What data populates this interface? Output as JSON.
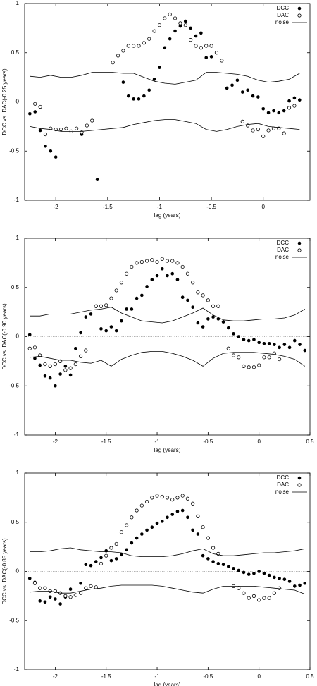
{
  "chart_data": [
    {
      "type": "scatter",
      "xlabel": "lag (years)",
      "ylabel": "DCC vs. DAC(-0.25 years)",
      "xlim": [
        -2.3,
        0.45
      ],
      "ylim": [
        -1,
        1
      ],
      "xticks": [
        -2,
        -1.5,
        -1,
        -0.5,
        0
      ],
      "yticks": [
        -1,
        -0.5,
        0,
        0.5,
        1
      ],
      "hline": 0,
      "grid": false,
      "legend": "upper right",
      "series": [
        {
          "name": "DCC",
          "style": "filled-circle",
          "color": "#000000",
          "x": [
            -2.25,
            -2.2,
            -2.15,
            -2.1,
            -2.05,
            -2.0,
            -1.95,
            -1.9,
            -1.85,
            -1.8,
            -1.75,
            -1.7,
            -1.65,
            -1.6,
            -1.55,
            -1.5,
            -1.45,
            -1.4,
            -1.35,
            -1.3,
            -1.25,
            -1.2,
            -1.15,
            -1.1,
            -1.05,
            -1.0,
            -0.95,
            -0.9,
            -0.85,
            -0.8,
            -0.75,
            -0.7,
            -0.65,
            -0.6,
            -0.55,
            -0.5,
            -0.45,
            -0.4,
            -0.35,
            -0.3,
            -0.25,
            -0.2,
            -0.15,
            -0.1,
            -0.05,
            0.0,
            0.05,
            0.1,
            0.15,
            0.2,
            0.25,
            0.3,
            0.35
          ],
          "values": [
            -0.12,
            -0.1,
            -0.29,
            -0.45,
            -0.5,
            -0.56,
            null,
            null,
            null,
            null,
            -0.33,
            null,
            null,
            -0.79,
            null,
            null,
            null,
            null,
            0.2,
            0.06,
            0.03,
            0.03,
            0.06,
            0.12,
            0.23,
            0.35,
            0.55,
            0.64,
            0.72,
            0.77,
            0.82,
            0.75,
            0.67,
            0.7,
            0.45,
            0.46,
            null,
            null,
            0.14,
            0.17,
            0.22,
            0.1,
            0.12,
            0.06,
            0.05,
            -0.07,
            -0.11,
            -0.09,
            -0.11,
            -0.09,
            0.01,
            0.04,
            0.02
          ]
        },
        {
          "name": "DAC",
          "style": "open-circle",
          "color": "#000000",
          "x": [
            -2.25,
            -2.2,
            -2.15,
            -2.1,
            -2.05,
            -2.0,
            -1.95,
            -1.9,
            -1.85,
            -1.8,
            -1.75,
            -1.7,
            -1.65,
            -1.6,
            -1.55,
            -1.5,
            -1.45,
            -1.4,
            -1.35,
            -1.3,
            -1.25,
            -1.2,
            -1.15,
            -1.1,
            -1.05,
            -1.0,
            -0.95,
            -0.9,
            -0.85,
            -0.8,
            -0.75,
            -0.7,
            -0.65,
            -0.6,
            -0.55,
            -0.5,
            -0.45,
            -0.4,
            -0.35,
            -0.3,
            -0.25,
            -0.2,
            -0.15,
            -0.1,
            -0.05,
            0.0,
            0.05,
            0.1,
            0.15,
            0.2,
            0.25,
            0.3,
            0.35
          ],
          "values": [
            null,
            -0.02,
            -0.05,
            -0.33,
            -0.27,
            -0.28,
            -0.28,
            -0.27,
            -0.3,
            -0.27,
            -0.31,
            -0.24,
            -0.19,
            null,
            null,
            null,
            0.4,
            0.47,
            0.52,
            0.57,
            0.57,
            0.57,
            0.6,
            0.64,
            0.72,
            0.78,
            0.85,
            0.89,
            0.85,
            0.8,
            0.78,
            0.63,
            0.57,
            0.55,
            0.57,
            0.57,
            0.5,
            0.42,
            null,
            null,
            null,
            -0.2,
            -0.24,
            -0.29,
            -0.28,
            -0.35,
            -0.29,
            -0.27,
            -0.27,
            -0.32,
            -0.06,
            -0.04,
            null
          ]
        },
        {
          "name": "noise",
          "style": "line",
          "color": "#000000",
          "x": [
            -2.25,
            -2.15,
            -2.05,
            -1.95,
            -1.85,
            -1.75,
            -1.65,
            -1.55,
            -1.45,
            -1.35,
            -1.25,
            -1.15,
            -1.05,
            -0.95,
            -0.85,
            -0.75,
            -0.65,
            -0.55,
            -0.45,
            -0.35,
            -0.25,
            -0.15,
            -0.05,
            0.05,
            0.15,
            0.25,
            0.35
          ],
          "values": [
            0.26,
            0.25,
            0.27,
            0.25,
            0.25,
            0.27,
            0.3,
            0.3,
            0.3,
            0.29,
            0.29,
            0.25,
            0.21,
            0.19,
            0.18,
            0.2,
            0.22,
            0.3,
            0.3,
            0.29,
            0.28,
            0.26,
            0.22,
            0.2,
            0.21,
            0.23,
            0.29
          ],
          "lower": [
            -0.25,
            -0.27,
            -0.28,
            -0.3,
            -0.3,
            -0.3,
            -0.29,
            -0.28,
            -0.27,
            -0.26,
            -0.23,
            -0.21,
            -0.19,
            -0.18,
            -0.18,
            -0.2,
            -0.22,
            -0.28,
            -0.3,
            -0.28,
            -0.25,
            -0.23,
            -0.22,
            -0.25,
            -0.26,
            -0.27,
            -0.28
          ]
        }
      ]
    },
    {
      "type": "scatter",
      "xlabel": "lag (years)",
      "ylabel": "DCC vs. DAC(-0.90 years)",
      "xlim": [
        -2.3,
        0.5
      ],
      "ylim": [
        -1,
        1
      ],
      "xticks": [
        -2,
        -1.5,
        -1,
        -0.5,
        0,
        0.5
      ],
      "yticks": [
        -1,
        -0.5,
        0,
        0.5,
        1
      ],
      "hline": 0,
      "grid": false,
      "legend": "upper right",
      "series": [
        {
          "name": "DCC",
          "style": "filled-circle",
          "color": "#000000",
          "x": [
            -2.25,
            -2.2,
            -2.15,
            -2.1,
            -2.05,
            -2.0,
            -1.95,
            -1.9,
            -1.85,
            -1.8,
            -1.75,
            -1.7,
            -1.65,
            -1.6,
            -1.55,
            -1.5,
            -1.45,
            -1.4,
            -1.35,
            -1.3,
            -1.25,
            -1.2,
            -1.15,
            -1.1,
            -1.05,
            -1.0,
            -0.95,
            -0.9,
            -0.85,
            -0.8,
            -0.75,
            -0.7,
            -0.65,
            -0.6,
            -0.55,
            -0.5,
            -0.45,
            -0.4,
            -0.35,
            -0.3,
            -0.25,
            -0.2,
            -0.15,
            -0.1,
            -0.05,
            0.0,
            0.05,
            0.1,
            0.15,
            0.2,
            0.25,
            0.3,
            0.35,
            0.4,
            0.45
          ],
          "values": [
            0.02,
            -0.22,
            -0.29,
            -0.4,
            -0.42,
            -0.5,
            -0.38,
            -0.3,
            -0.39,
            -0.12,
            0.04,
            0.2,
            0.23,
            0.31,
            0.08,
            0.06,
            0.1,
            0.06,
            0.16,
            0.28,
            0.28,
            0.39,
            0.42,
            0.51,
            0.58,
            0.62,
            0.69,
            0.62,
            0.64,
            0.58,
            0.4,
            0.37,
            0.3,
            0.14,
            0.1,
            0.18,
            0.2,
            0.18,
            0.15,
            0.09,
            0.03,
            0.0,
            -0.03,
            -0.04,
            -0.03,
            -0.06,
            -0.07,
            -0.07,
            -0.08,
            -0.11,
            -0.08,
            -0.11,
            -0.04,
            -0.08,
            -0.14
          ]
        },
        {
          "name": "DAC",
          "style": "open-circle",
          "color": "#000000",
          "x": [
            -2.25,
            -2.2,
            -2.15,
            -2.1,
            -2.05,
            -2.0,
            -1.95,
            -1.9,
            -1.85,
            -1.8,
            -1.75,
            -1.7,
            -1.65,
            -1.6,
            -1.55,
            -1.5,
            -1.45,
            -1.4,
            -1.35,
            -1.3,
            -1.25,
            -1.2,
            -1.15,
            -1.1,
            -1.05,
            -1.0,
            -0.95,
            -0.9,
            -0.85,
            -0.8,
            -0.75,
            -0.7,
            -0.65,
            -0.6,
            -0.55,
            -0.5,
            -0.45,
            -0.4,
            -0.35,
            -0.3,
            -0.25,
            -0.2,
            -0.15,
            -0.1,
            -0.05,
            0.0,
            0.05,
            0.1,
            0.15,
            0.2,
            0.25,
            0.3,
            0.35,
            0.4,
            0.45
          ],
          "values": [
            -0.12,
            -0.11,
            -0.19,
            -0.28,
            -0.3,
            -0.28,
            -0.25,
            -0.34,
            -0.32,
            -0.28,
            -0.2,
            -0.14,
            null,
            0.31,
            0.31,
            0.32,
            0.39,
            0.47,
            0.55,
            0.64,
            0.71,
            0.75,
            0.76,
            0.77,
            0.78,
            0.76,
            0.79,
            0.77,
            0.77,
            0.75,
            0.71,
            0.64,
            0.55,
            0.45,
            0.42,
            0.37,
            0.31,
            0.31,
            null,
            -0.12,
            -0.19,
            -0.21,
            -0.3,
            -0.31,
            -0.31,
            -0.29,
            -0.21,
            -0.21,
            -0.17,
            -0.23,
            null,
            null,
            null,
            null,
            null
          ]
        },
        {
          "name": "noise",
          "style": "line",
          "color": "#000000",
          "x": [
            -2.25,
            -2.15,
            -2.05,
            -1.95,
            -1.85,
            -1.75,
            -1.65,
            -1.55,
            -1.45,
            -1.35,
            -1.25,
            -1.15,
            -1.05,
            -0.95,
            -0.85,
            -0.75,
            -0.65,
            -0.55,
            -0.45,
            -0.35,
            -0.25,
            -0.15,
            -0.05,
            0.05,
            0.15,
            0.25,
            0.35,
            0.45
          ],
          "values": [
            0.21,
            0.21,
            0.23,
            0.23,
            0.23,
            0.25,
            0.27,
            0.28,
            0.3,
            0.24,
            0.2,
            0.16,
            0.15,
            0.14,
            0.16,
            0.2,
            0.24,
            0.29,
            0.22,
            0.17,
            0.16,
            0.16,
            0.17,
            0.18,
            0.18,
            0.19,
            0.22,
            0.28
          ],
          "lower": [
            -0.21,
            -0.2,
            -0.22,
            -0.24,
            -0.24,
            -0.26,
            -0.27,
            -0.24,
            -0.3,
            -0.23,
            -0.19,
            -0.16,
            -0.15,
            -0.15,
            -0.17,
            -0.2,
            -0.24,
            -0.3,
            -0.22,
            -0.17,
            -0.16,
            -0.16,
            -0.16,
            -0.17,
            -0.18,
            -0.2,
            -0.23,
            -0.3
          ]
        }
      ]
    },
    {
      "type": "scatter",
      "xlabel": "lag (years)",
      "ylabel": "DCC vs. DAC(-0.85 years)",
      "xlim": [
        -2.3,
        0.5
      ],
      "ylim": [
        -1,
        1
      ],
      "xticks": [
        -2,
        -1.5,
        -1,
        -0.5,
        0,
        0.5
      ],
      "yticks": [
        -1,
        -0.5,
        0,
        0.5,
        1
      ],
      "hline": 0,
      "grid": false,
      "legend": "upper right",
      "series": [
        {
          "name": "DCC",
          "style": "filled-circle",
          "color": "#000000",
          "x": [
            -2.25,
            -2.2,
            -2.15,
            -2.1,
            -2.05,
            -2.0,
            -1.95,
            -1.9,
            -1.85,
            -1.8,
            -1.75,
            -1.7,
            -1.65,
            -1.6,
            -1.55,
            -1.5,
            -1.45,
            -1.4,
            -1.35,
            -1.3,
            -1.25,
            -1.2,
            -1.15,
            -1.1,
            -1.05,
            -1.0,
            -0.95,
            -0.9,
            -0.85,
            -0.8,
            -0.75,
            -0.7,
            -0.65,
            -0.6,
            -0.55,
            -0.5,
            -0.45,
            -0.4,
            -0.35,
            -0.3,
            -0.25,
            -0.2,
            -0.15,
            -0.1,
            -0.05,
            0.0,
            0.05,
            0.1,
            0.15,
            0.2,
            0.25,
            0.3,
            0.35,
            0.4,
            0.45
          ],
          "values": [
            -0.07,
            -0.11,
            -0.3,
            -0.31,
            -0.26,
            -0.28,
            -0.33,
            -0.26,
            -0.18,
            -0.24,
            -0.12,
            0.07,
            0.06,
            0.1,
            0.14,
            0.21,
            0.11,
            0.13,
            0.17,
            0.22,
            0.29,
            0.34,
            0.38,
            0.42,
            0.45,
            0.49,
            0.51,
            0.55,
            0.58,
            0.61,
            0.62,
            0.55,
            0.42,
            0.38,
            0.16,
            0.13,
            0.1,
            0.08,
            0.07,
            0.05,
            0.03,
            0.01,
            -0.01,
            -0.03,
            -0.02,
            0.0,
            -0.02,
            -0.04,
            -0.06,
            -0.07,
            -0.08,
            -0.1,
            -0.15,
            -0.14,
            -0.12
          ]
        },
        {
          "name": "DAC",
          "style": "open-circle",
          "color": "#000000",
          "x": [
            -2.25,
            -2.2,
            -2.15,
            -2.1,
            -2.05,
            -2.0,
            -1.95,
            -1.9,
            -1.85,
            -1.8,
            -1.75,
            -1.7,
            -1.65,
            -1.6,
            -1.55,
            -1.5,
            -1.45,
            -1.4,
            -1.35,
            -1.3,
            -1.25,
            -1.2,
            -1.15,
            -1.1,
            -1.05,
            -1.0,
            -0.95,
            -0.9,
            -0.85,
            -0.8,
            -0.75,
            -0.7,
            -0.65,
            -0.6,
            -0.55,
            -0.5,
            -0.45,
            -0.4,
            -0.35,
            -0.3,
            -0.25,
            -0.2,
            -0.15,
            -0.1,
            -0.05,
            0.0,
            0.05,
            0.1,
            0.15,
            0.2,
            0.25,
            0.3,
            0.35,
            0.4,
            0.45
          ],
          "values": [
            null,
            -0.12,
            -0.17,
            -0.17,
            -0.2,
            -0.2,
            -0.22,
            -0.25,
            -0.26,
            -0.24,
            -0.22,
            -0.17,
            -0.15,
            -0.16,
            0.08,
            0.16,
            0.24,
            0.28,
            0.4,
            0.47,
            0.55,
            0.62,
            0.67,
            0.71,
            0.75,
            0.77,
            0.76,
            0.75,
            0.73,
            0.75,
            0.77,
            0.74,
            0.69,
            0.56,
            0.45,
            0.34,
            0.24,
            0.18,
            null,
            null,
            -0.15,
            -0.17,
            -0.22,
            -0.27,
            -0.25,
            -0.29,
            -0.27,
            -0.27,
            -0.22,
            -0.17,
            null,
            null,
            null,
            null,
            null
          ]
        },
        {
          "name": "noise",
          "style": "line",
          "color": "#000000",
          "x": [
            -2.25,
            -2.15,
            -2.05,
            -1.95,
            -1.85,
            -1.75,
            -1.65,
            -1.55,
            -1.45,
            -1.35,
            -1.25,
            -1.15,
            -1.05,
            -0.95,
            -0.85,
            -0.75,
            -0.65,
            -0.55,
            -0.45,
            -0.35,
            -0.25,
            -0.15,
            -0.05,
            0.05,
            0.15,
            0.25,
            0.35,
            0.45
          ],
          "values": [
            0.2,
            0.2,
            0.21,
            0.23,
            0.24,
            0.22,
            0.21,
            0.2,
            0.2,
            0.19,
            0.16,
            0.15,
            0.15,
            0.15,
            0.16,
            0.18,
            0.21,
            0.23,
            0.18,
            0.16,
            0.16,
            0.17,
            0.18,
            0.19,
            0.19,
            0.2,
            0.21,
            0.23
          ],
          "lower": [
            -0.21,
            -0.2,
            -0.2,
            -0.22,
            -0.22,
            -0.2,
            -0.18,
            -0.17,
            -0.15,
            -0.14,
            -0.14,
            -0.14,
            -0.14,
            -0.15,
            -0.17,
            -0.19,
            -0.21,
            -0.22,
            -0.18,
            -0.15,
            -0.15,
            -0.15,
            -0.15,
            -0.16,
            -0.17,
            -0.18,
            -0.19,
            -0.23
          ]
        }
      ]
    }
  ]
}
